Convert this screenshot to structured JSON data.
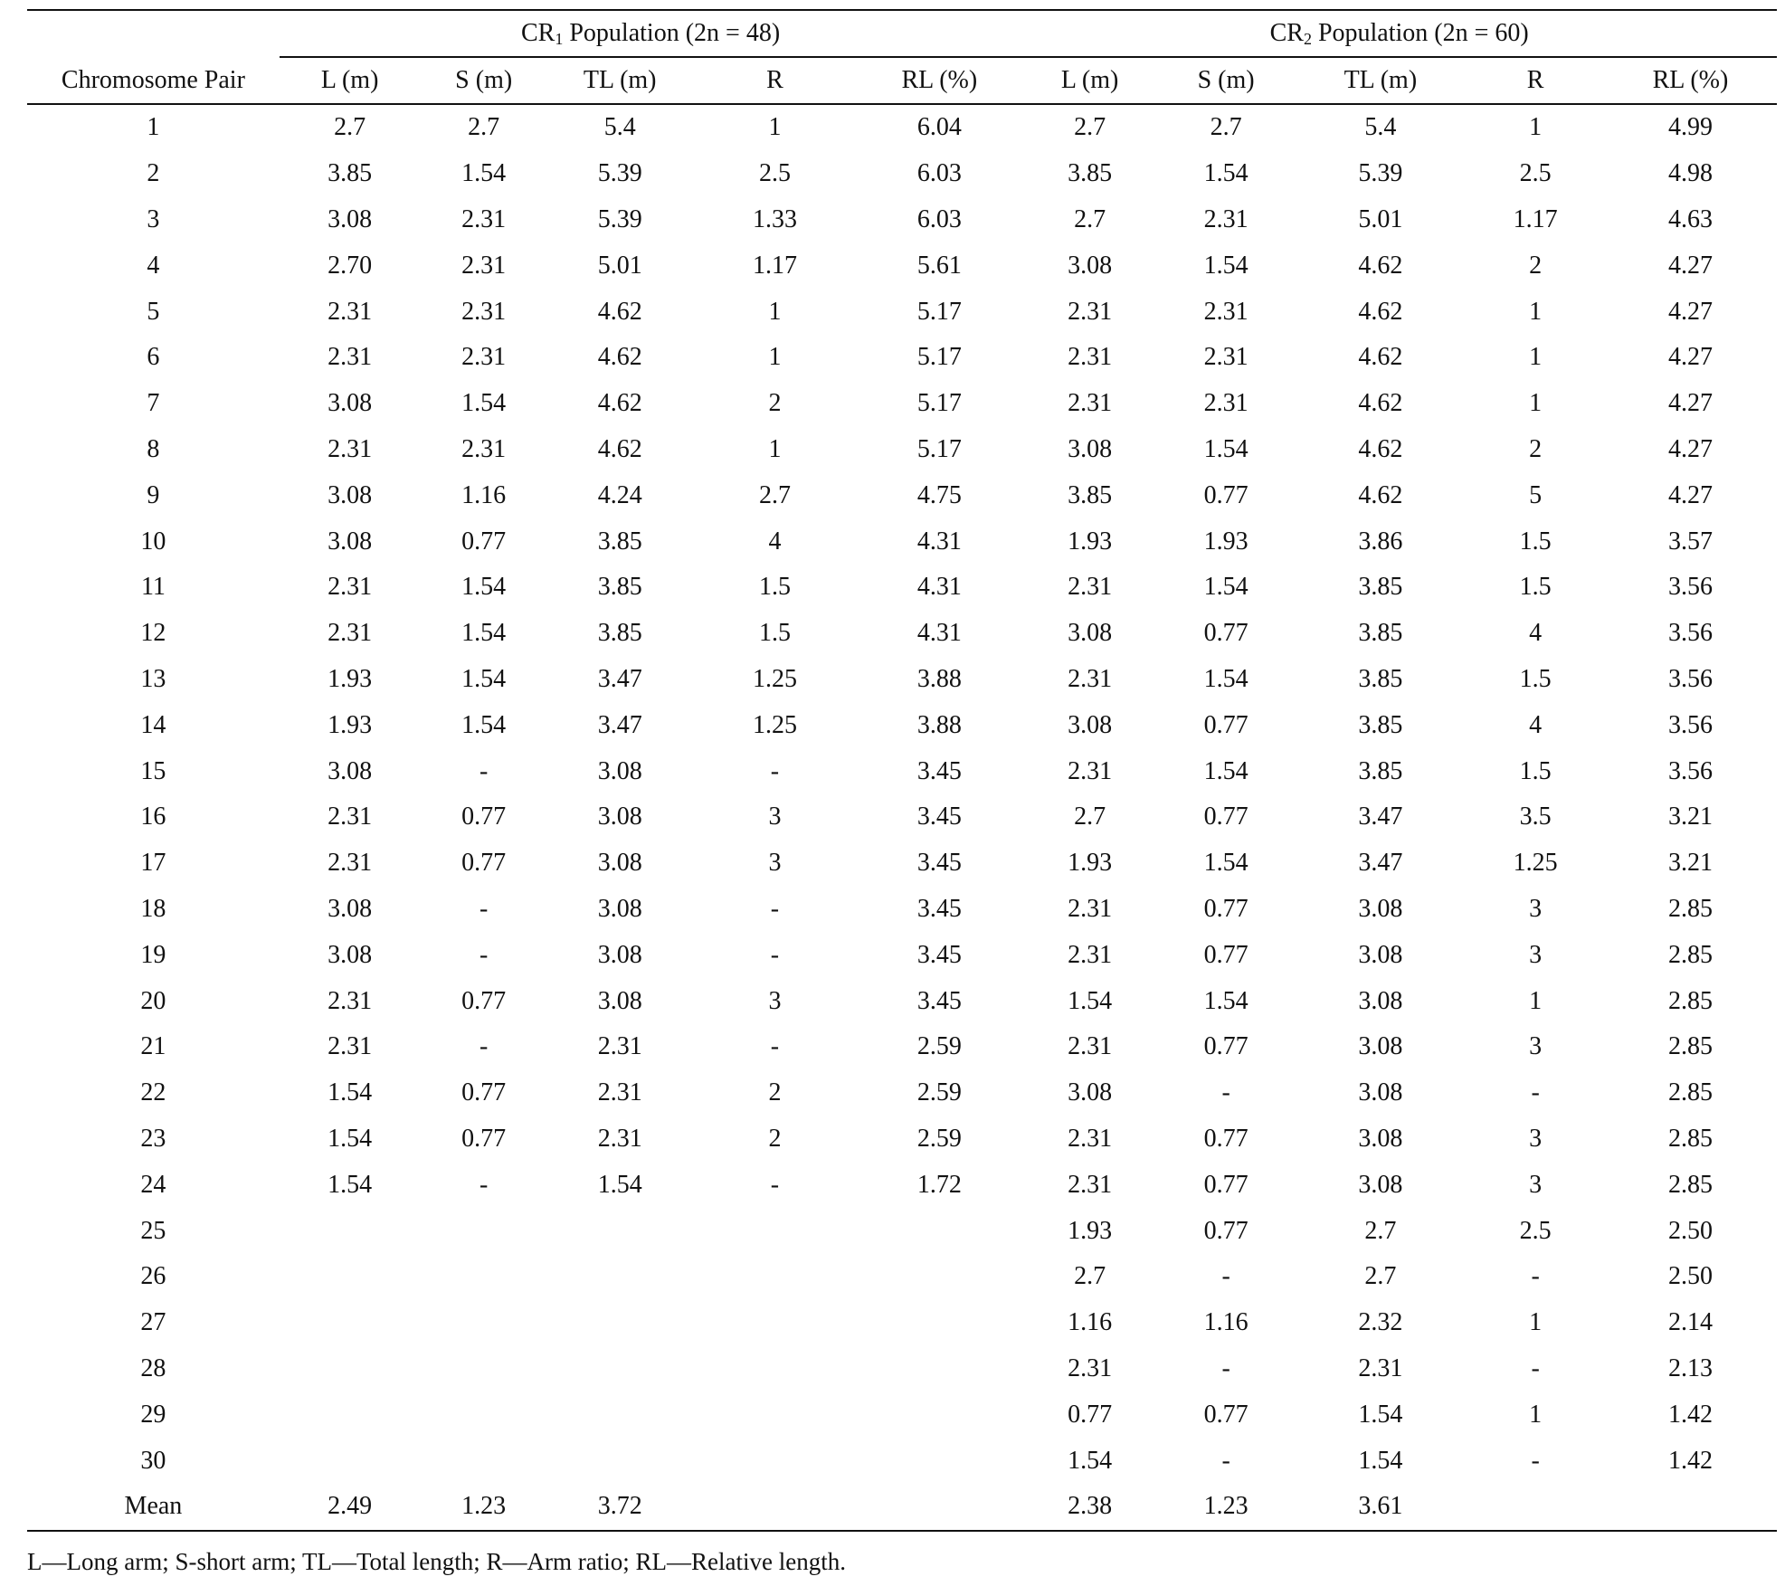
{
  "groups": [
    {
      "prefix": "CR",
      "sub": "1",
      "suffix": " Population (2n = 48)"
    },
    {
      "prefix": "CR",
      "sub": "2",
      "suffix": " Population (2n = 60)"
    }
  ],
  "columns": [
    "Chromosome Pair",
    "L (m)",
    "S (m)",
    "TL (m)",
    "R",
    "RL (%)",
    "L (m)",
    "S (m)",
    "TL (m)",
    "R",
    "RL (%)"
  ],
  "rows": [
    [
      "1",
      "2.7",
      "2.7",
      "5.4",
      "1",
      "6.04",
      "2.7",
      "2.7",
      "5.4",
      "1",
      "4.99"
    ],
    [
      "2",
      "3.85",
      "1.54",
      "5.39",
      "2.5",
      "6.03",
      "3.85",
      "1.54",
      "5.39",
      "2.5",
      "4.98"
    ],
    [
      "3",
      "3.08",
      "2.31",
      "5.39",
      "1.33",
      "6.03",
      "2.7",
      "2.31",
      "5.01",
      "1.17",
      "4.63"
    ],
    [
      "4",
      "2.70",
      "2.31",
      "5.01",
      "1.17",
      "5.61",
      "3.08",
      "1.54",
      "4.62",
      "2",
      "4.27"
    ],
    [
      "5",
      "2.31",
      "2.31",
      "4.62",
      "1",
      "5.17",
      "2.31",
      "2.31",
      "4.62",
      "1",
      "4.27"
    ],
    [
      "6",
      "2.31",
      "2.31",
      "4.62",
      "1",
      "5.17",
      "2.31",
      "2.31",
      "4.62",
      "1",
      "4.27"
    ],
    [
      "7",
      "3.08",
      "1.54",
      "4.62",
      "2",
      "5.17",
      "2.31",
      "2.31",
      "4.62",
      "1",
      "4.27"
    ],
    [
      "8",
      "2.31",
      "2.31",
      "4.62",
      "1",
      "5.17",
      "3.08",
      "1.54",
      "4.62",
      "2",
      "4.27"
    ],
    [
      "9",
      "3.08",
      "1.16",
      "4.24",
      "2.7",
      "4.75",
      "3.85",
      "0.77",
      "4.62",
      "5",
      "4.27"
    ],
    [
      "10",
      "3.08",
      "0.77",
      "3.85",
      "4",
      "4.31",
      "1.93",
      "1.93",
      "3.86",
      "1.5",
      "3.57"
    ],
    [
      "11",
      "2.31",
      "1.54",
      "3.85",
      "1.5",
      "4.31",
      "2.31",
      "1.54",
      "3.85",
      "1.5",
      "3.56"
    ],
    [
      "12",
      "2.31",
      "1.54",
      "3.85",
      "1.5",
      "4.31",
      "3.08",
      "0.77",
      "3.85",
      "4",
      "3.56"
    ],
    [
      "13",
      "1.93",
      "1.54",
      "3.47",
      "1.25",
      "3.88",
      "2.31",
      "1.54",
      "3.85",
      "1.5",
      "3.56"
    ],
    [
      "14",
      "1.93",
      "1.54",
      "3.47",
      "1.25",
      "3.88",
      "3.08",
      "0.77",
      "3.85",
      "4",
      "3.56"
    ],
    [
      "15",
      "3.08",
      "-",
      "3.08",
      "-",
      "3.45",
      "2.31",
      "1.54",
      "3.85",
      "1.5",
      "3.56"
    ],
    [
      "16",
      "2.31",
      "0.77",
      "3.08",
      "3",
      "3.45",
      "2.7",
      "0.77",
      "3.47",
      "3.5",
      "3.21"
    ],
    [
      "17",
      "2.31",
      "0.77",
      "3.08",
      "3",
      "3.45",
      "1.93",
      "1.54",
      "3.47",
      "1.25",
      "3.21"
    ],
    [
      "18",
      "3.08",
      "-",
      "3.08",
      "-",
      "3.45",
      "2.31",
      "0.77",
      "3.08",
      "3",
      "2.85"
    ],
    [
      "19",
      "3.08",
      "-",
      "3.08",
      "-",
      "3.45",
      "2.31",
      "0.77",
      "3.08",
      "3",
      "2.85"
    ],
    [
      "20",
      "2.31",
      "0.77",
      "3.08",
      "3",
      "3.45",
      "1.54",
      "1.54",
      "3.08",
      "1",
      "2.85"
    ],
    [
      "21",
      "2.31",
      "-",
      "2.31",
      "-",
      "2.59",
      "2.31",
      "0.77",
      "3.08",
      "3",
      "2.85"
    ],
    [
      "22",
      "1.54",
      "0.77",
      "2.31",
      "2",
      "2.59",
      "3.08",
      "-",
      "3.08",
      "-",
      "2.85"
    ],
    [
      "23",
      "1.54",
      "0.77",
      "2.31",
      "2",
      "2.59",
      "2.31",
      "0.77",
      "3.08",
      "3",
      "2.85"
    ],
    [
      "24",
      "1.54",
      "-",
      "1.54",
      "-",
      "1.72",
      "2.31",
      "0.77",
      "3.08",
      "3",
      "2.85"
    ],
    [
      "25",
      "",
      "",
      "",
      "",
      "",
      "1.93",
      "0.77",
      "2.7",
      "2.5",
      "2.50"
    ],
    [
      "26",
      "",
      "",
      "",
      "",
      "",
      "2.7",
      "-",
      "2.7",
      "-",
      "2.50"
    ],
    [
      "27",
      "",
      "",
      "",
      "",
      "",
      "1.16",
      "1.16",
      "2.32",
      "1",
      "2.14"
    ],
    [
      "28",
      "",
      "",
      "",
      "",
      "",
      "2.31",
      "-",
      "2.31",
      "-",
      "2.13"
    ],
    [
      "29",
      "",
      "",
      "",
      "",
      "",
      "0.77",
      "0.77",
      "1.54",
      "1",
      "1.42"
    ],
    [
      "30",
      "",
      "",
      "",
      "",
      "",
      "1.54",
      "-",
      "1.54",
      "-",
      "1.42"
    ]
  ],
  "mean_row": [
    "Mean",
    "2.49",
    "1.23",
    "3.72",
    "",
    "",
    "2.38",
    "1.23",
    "3.61",
    "",
    ""
  ],
  "footnote": "L—Long arm; S-short arm; TL—Total length; R—Arm ratio; RL—Relative length."
}
